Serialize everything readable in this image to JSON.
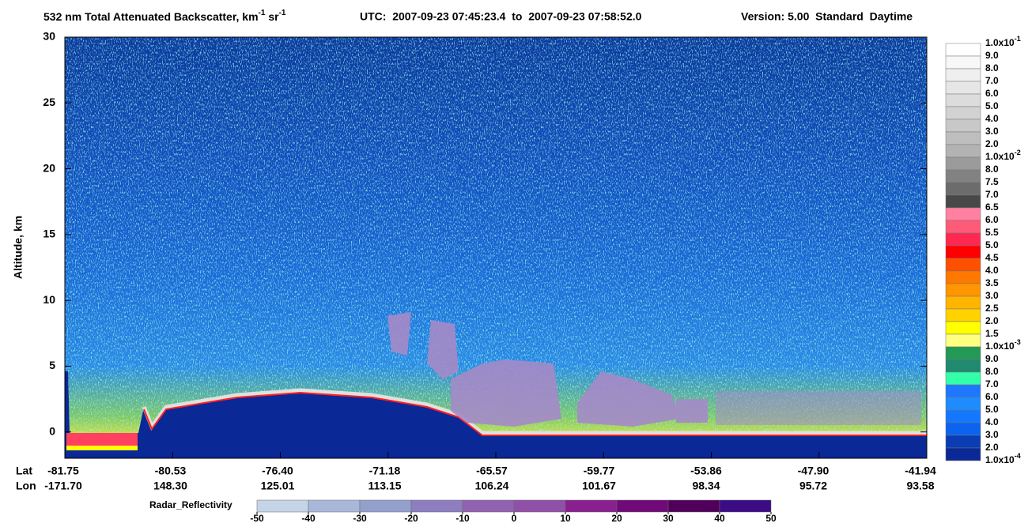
{
  "chart_data": {
    "type": "curtain",
    "title_parts": [
      {
        "text": "532 nm Total Attenuated Backscatter, km"
      },
      {
        "sup": "-1"
      },
      {
        "text": " sr"
      },
      {
        "sup": "-1"
      }
    ],
    "utc": "UTC:  2007-09-23 07:45:23.4  to  2007-09-23 07:58:52.0",
    "version": "Version: 5.00  Standard  Daytime",
    "ylabel": "Altitude, km",
    "ylim": [
      -2,
      30
    ],
    "yticks": [
      0,
      5,
      10,
      15,
      20,
      25,
      30
    ],
    "x_rows": [
      {
        "name": "Lat",
        "labels": [
          "-81.75",
          "-80.53",
          "-76.40",
          "-71.18",
          "-65.57",
          "-59.77",
          "-53.86",
          "-47.90",
          "-41.94"
        ]
      },
      {
        "name": "Lon",
        "labels": [
          "-171.70",
          "148.30",
          "125.01",
          "113.15",
          "106.24",
          "101.67",
          "98.34",
          "95.72",
          "93.58"
        ]
      }
    ],
    "colorbar": {
      "labels": [
        {
          "base": "1.0x10",
          "sup": "-1"
        },
        "9.0",
        "8.0",
        "7.0",
        "6.0",
        "5.0",
        "4.0",
        "3.0",
        "2.0",
        {
          "base": "1.0x10",
          "sup": "-2"
        },
        "8.0",
        "7.5",
        "7.0",
        "6.5",
        "6.0",
        "5.5",
        "5.0",
        "4.5",
        "4.0",
        "3.5",
        "3.0",
        "2.5",
        "2.0",
        "1.5",
        {
          "base": "1.0x10",
          "sup": "-3"
        },
        "9.0",
        "8.0",
        "7.0",
        "6.0",
        "5.0",
        "4.0",
        "3.0",
        "2.0",
        {
          "base": "1.0x10",
          "sup": "-4"
        }
      ],
      "colors": [
        "#ffffff",
        "#f7f7f7",
        "#efefef",
        "#e6e6e6",
        "#dcdcdc",
        "#d2d2d2",
        "#c8c8c8",
        "#bebebe",
        "#b3b3b3",
        "#9b9b9b",
        "#828282",
        "#6c6c6c",
        "#484848",
        "#ff80a0",
        "#ff5a78",
        "#ff2850",
        "#ff0000",
        "#ff5000",
        "#ff7800",
        "#ff9600",
        "#ffb400",
        "#ffd200",
        "#ffff00",
        "#ffff80",
        "#229955",
        "#1f8a70",
        "#33ffaa",
        "#1e78ff",
        "#1e8cff",
        "#1478ff",
        "#0a64f0",
        "#0a3cb4",
        "#0a2896"
      ]
    },
    "radar_colorbar": {
      "label": "Radar_Reflectivity",
      "lim": [
        -50,
        50
      ],
      "ticks": [
        -50,
        -40,
        -30,
        -20,
        -10,
        0,
        10,
        20,
        30,
        40,
        50
      ],
      "colors": [
        "#c6d4e8",
        "#a9b8da",
        "#93a0cc",
        "#8e7ec0",
        "#9262b2",
        "#9050a8",
        "#8a2090",
        "#700a78",
        "#50005a",
        "#3c0c84"
      ]
    }
  }
}
